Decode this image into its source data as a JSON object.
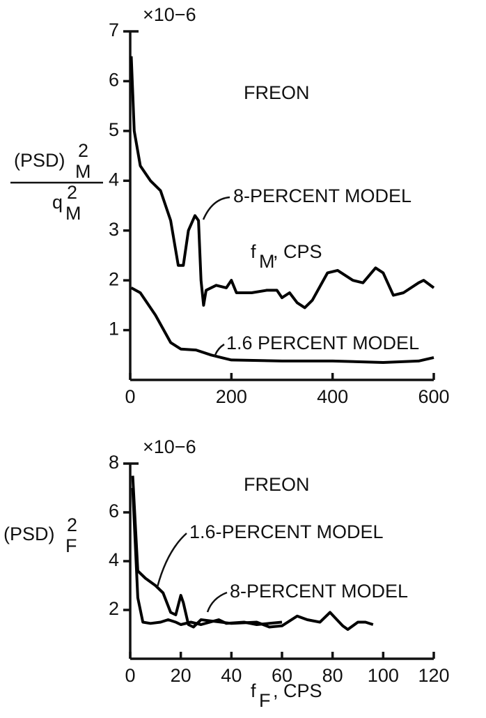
{
  "chart_data": [
    {
      "type": "line",
      "y_multiplier": "×10−6",
      "annotation": "FREON",
      "xlabel": {
        "text": "f",
        "sub": "M",
        "suffix": ", CPS"
      },
      "ylabel": {
        "numerator": "(PSD)",
        "numerator_sup": "2",
        "numerator_sub": "M",
        "denominator": "q",
        "denominator_sup": "2",
        "denominator_sub": "M"
      },
      "xlim": [
        0,
        600
      ],
      "xticks": [
        0,
        200,
        400,
        600
      ],
      "ylim": [
        0,
        7
      ],
      "yticks": [
        1,
        2,
        3,
        4,
        5,
        6,
        7
      ],
      "series": [
        {
          "name": "8-PERCENT MODEL",
          "color": "#000000",
          "x": [
            2,
            8,
            20,
            40,
            60,
            80,
            95,
            105,
            115,
            128,
            135,
            140,
            145,
            150,
            170,
            190,
            200,
            210,
            240,
            270,
            290,
            300,
            315,
            330,
            345,
            360,
            390,
            410,
            440,
            460,
            485,
            500,
            520,
            540,
            570,
            580,
            600
          ],
          "values": [
            6.5,
            5,
            4.3,
            4.0,
            3.8,
            3.2,
            2.3,
            2.3,
            3.0,
            3.3,
            3.2,
            2.0,
            1.5,
            1.8,
            1.9,
            1.85,
            2.0,
            1.75,
            1.75,
            1.8,
            1.8,
            1.65,
            1.75,
            1.55,
            1.45,
            1.6,
            2.15,
            2.2,
            2.0,
            1.95,
            2.25,
            2.15,
            1.7,
            1.75,
            1.95,
            2.0,
            1.85
          ]
        },
        {
          "name": "1.6 PERCENT MODEL",
          "color": "#000000",
          "x": [
            2,
            20,
            50,
            80,
            100,
            130,
            160,
            180,
            200,
            300,
            400,
            500,
            570,
            600
          ],
          "values": [
            1.85,
            1.75,
            1.3,
            0.75,
            0.62,
            0.6,
            0.5,
            0.45,
            0.4,
            0.38,
            0.38,
            0.35,
            0.38,
            0.45
          ]
        }
      ]
    },
    {
      "type": "line",
      "y_multiplier": "×10−6",
      "annotation": "FREON",
      "xlabel": {
        "text": "f",
        "sub": "F",
        "suffix": ", CPS"
      },
      "ylabel": {
        "numerator": "(PSD)",
        "numerator_sup": "2",
        "numerator_sub": "F"
      },
      "xlim": [
        0,
        120
      ],
      "xticks": [
        0,
        20,
        40,
        60,
        80,
        100,
        120
      ],
      "ylim": [
        0,
        8
      ],
      "yticks": [
        2,
        4,
        6,
        8
      ],
      "series": [
        {
          "name": "1.6-PERCENT MODEL",
          "color": "#000000",
          "x": [
            1,
            3,
            6,
            10,
            13,
            16,
            18,
            20,
            21,
            23,
            25,
            28,
            32,
            40,
            50,
            55,
            60,
            66,
            70,
            75,
            79,
            84,
            86,
            90,
            93,
            96
          ],
          "values": [
            7.5,
            3.6,
            3.3,
            3.0,
            2.7,
            1.9,
            1.8,
            2.6,
            2.3,
            1.4,
            1.3,
            1.6,
            1.55,
            1.45,
            1.5,
            1.3,
            1.35,
            1.75,
            1.6,
            1.5,
            1.9,
            1.35,
            1.2,
            1.5,
            1.5,
            1.4
          ]
        },
        {
          "name": "8-PERCENT MODEL",
          "color": "#000000",
          "x": [
            1,
            3,
            5,
            8,
            12,
            15,
            18,
            20,
            24,
            28,
            35,
            38,
            45,
            50,
            55,
            60
          ],
          "values": [
            7,
            2.5,
            1.5,
            1.45,
            1.5,
            1.6,
            1.5,
            1.4,
            1.5,
            1.4,
            1.6,
            1.45,
            1.5,
            1.4,
            1.45,
            1.5
          ]
        }
      ]
    }
  ]
}
